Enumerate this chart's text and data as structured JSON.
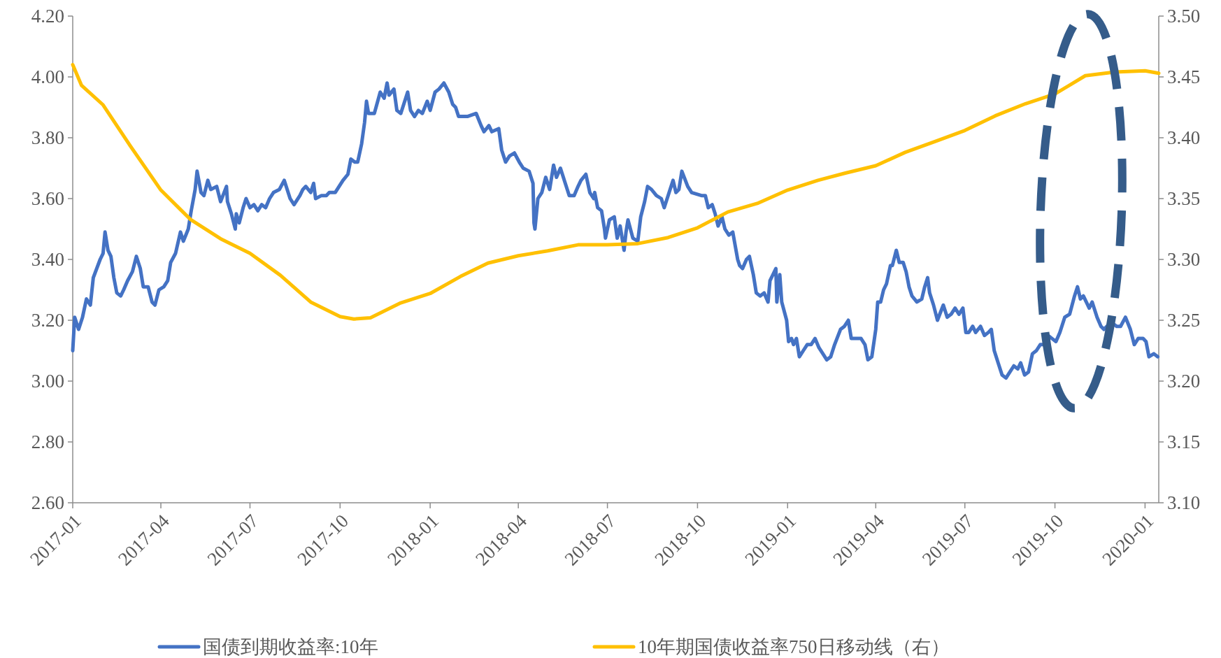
{
  "chart_data": {
    "type": "line",
    "xlim": [
      "2017-01-01",
      "2020-01-15"
    ],
    "xticks": [
      "2017-01",
      "2017-04",
      "2017-07",
      "2017-10",
      "2018-01",
      "2018-04",
      "2018-07",
      "2018-10",
      "2019-01",
      "2019-04",
      "2019-07",
      "2019-10",
      "2020-01"
    ],
    "ylim": [
      2.6,
      4.2
    ],
    "yticks": [
      {
        "value": 2.6,
        "label": "2.60"
      },
      {
        "value": 2.8,
        "label": "2.80"
      },
      {
        "value": 3.0,
        "label": "3.00"
      },
      {
        "value": 3.2,
        "label": "3.20"
      },
      {
        "value": 3.4,
        "label": "3.40"
      },
      {
        "value": 3.6,
        "label": "3.60"
      },
      {
        "value": 3.8,
        "label": "3.80"
      },
      {
        "value": 4.0,
        "label": "4.00"
      },
      {
        "value": 4.2,
        "label": "4.20"
      }
    ],
    "y2lim": [
      3.1,
      3.5
    ],
    "y2ticks": [
      {
        "value": 3.1,
        "label": "3.10"
      },
      {
        "value": 3.15,
        "label": "3.15"
      },
      {
        "value": 3.2,
        "label": "3.20"
      },
      {
        "value": 3.25,
        "label": "3.25"
      },
      {
        "value": 3.3,
        "label": "3.30"
      },
      {
        "value": 3.35,
        "label": "3.35"
      },
      {
        "value": 3.4,
        "label": "3.40"
      },
      {
        "value": 3.45,
        "label": "3.45"
      },
      {
        "value": 3.5,
        "label": "3.50"
      }
    ],
    "legend": "bottom",
    "series": [
      {
        "name": "国债到期收益率:10年",
        "color": "#4472c4",
        "x": [
          "2017-01-01",
          "2017-01-03",
          "2017-01-07",
          "2017-01-11",
          "2017-01-15",
          "2017-01-19",
          "2017-01-22",
          "2017-01-29",
          "2017-02-01",
          "2017-02-03",
          "2017-02-06",
          "2017-02-09",
          "2017-02-12",
          "2017-02-15",
          "2017-02-19",
          "2017-02-22",
          "2017-02-26",
          "2017-03-03",
          "2017-03-07",
          "2017-03-11",
          "2017-03-14",
          "2017-03-19",
          "2017-03-23",
          "2017-03-26",
          "2017-03-30",
          "2017-04-04",
          "2017-04-08",
          "2017-04-11",
          "2017-04-16",
          "2017-04-21",
          "2017-04-24",
          "2017-04-29",
          "2017-05-02",
          "2017-05-06",
          "2017-05-08",
          "2017-05-12",
          "2017-05-15",
          "2017-05-19",
          "2017-05-22",
          "2017-05-28",
          "2017-06-01",
          "2017-06-07",
          "2017-06-08",
          "2017-06-12",
          "2017-06-16",
          "2017-06-17",
          "2017-06-20",
          "2017-06-24",
          "2017-06-27",
          "2017-07-01",
          "2017-07-05",
          "2017-07-09",
          "2017-07-13",
          "2017-07-17",
          "2017-07-21",
          "2017-07-25",
          "2017-07-31",
          "2017-08-05",
          "2017-08-11",
          "2017-08-15",
          "2017-08-21",
          "2017-08-24",
          "2017-08-27",
          "2017-09-01",
          "2017-09-04",
          "2017-09-06",
          "2017-09-12",
          "2017-09-17",
          "2017-09-20",
          "2017-09-26",
          "2017-10-04",
          "2017-10-09",
          "2017-10-12",
          "2017-10-16",
          "2017-10-19",
          "2017-10-23",
          "2017-10-26",
          "2017-10-28",
          "2017-10-30",
          "2017-11-05",
          "2017-11-11",
          "2017-11-15",
          "2017-11-18",
          "2017-11-20",
          "2017-11-25",
          "2017-11-28",
          "2017-12-02",
          "2017-12-07",
          "2017-12-09",
          "2017-12-12",
          "2017-12-16",
          "2017-12-20",
          "2017-12-24",
          "2017-12-29",
          "2018-01-01",
          "2018-01-06",
          "2018-01-10",
          "2018-01-15",
          "2018-01-20",
          "2018-01-24",
          "2018-01-27",
          "2018-01-30",
          "2018-02-08",
          "2018-02-17",
          "2018-02-22",
          "2018-02-25",
          "2018-03-02",
          "2018-03-05",
          "2018-03-12",
          "2018-03-15",
          "2018-03-19",
          "2018-03-23",
          "2018-03-28",
          "2018-04-02",
          "2018-04-06",
          "2018-04-12",
          "2018-04-16",
          "2018-04-17",
          "2018-04-18",
          "2018-04-21",
          "2018-04-25",
          "2018-04-29",
          "2018-05-03",
          "2018-05-07",
          "2018-05-10",
          "2018-05-14",
          "2018-05-18",
          "2018-05-23",
          "2018-05-28",
          "2018-06-01",
          "2018-06-04",
          "2018-06-09",
          "2018-06-13",
          "2018-06-17",
          "2018-06-18",
          "2018-06-21",
          "2018-06-25",
          "2018-06-28",
          "2018-06-29",
          "2018-07-03",
          "2018-07-08",
          "2018-07-11",
          "2018-07-14",
          "2018-07-18",
          "2018-07-20",
          "2018-07-22",
          "2018-07-27",
          "2018-08-01",
          "2018-08-04",
          "2018-08-08",
          "2018-08-11",
          "2018-08-15",
          "2018-08-20",
          "2018-08-25",
          "2018-08-28",
          "2018-09-02",
          "2018-09-06",
          "2018-09-09",
          "2018-09-12",
          "2018-09-15",
          "2018-09-21",
          "2018-09-25",
          "2018-10-05",
          "2018-10-09",
          "2018-10-12",
          "2018-10-16",
          "2018-10-19",
          "2018-10-22",
          "2018-10-26",
          "2018-10-29",
          "2018-11-02",
          "2018-11-06",
          "2018-11-11",
          "2018-11-13",
          "2018-11-16",
          "2018-11-20",
          "2018-11-23",
          "2018-11-27",
          "2018-11-30",
          "2018-12-04",
          "2018-12-08",
          "2018-12-12",
          "2018-12-14",
          "2018-12-17",
          "2018-12-20",
          "2018-12-21",
          "2018-12-24",
          "2018-12-26",
          "2018-12-31",
          "2019-01-02",
          "2019-01-05",
          "2019-01-07",
          "2019-01-10",
          "2019-01-13",
          "2019-01-17",
          "2019-01-21",
          "2019-01-25",
          "2019-01-29",
          "2019-02-02",
          "2019-02-10",
          "2019-02-14",
          "2019-02-18",
          "2019-02-24",
          "2019-02-28",
          "2019-03-04",
          "2019-03-07",
          "2019-03-12",
          "2019-03-17",
          "2019-03-21",
          "2019-03-24",
          "2019-03-28",
          "2019-04-01",
          "2019-04-03",
          "2019-04-06",
          "2019-04-09",
          "2019-04-12",
          "2019-04-16",
          "2019-04-18",
          "2019-04-22",
          "2019-04-25",
          "2019-04-29",
          "2019-05-02",
          "2019-05-05",
          "2019-05-08",
          "2019-05-13",
          "2019-05-18",
          "2019-05-21",
          "2019-05-24",
          "2019-05-26",
          "2019-05-30",
          "2019-06-03",
          "2019-06-09",
          "2019-06-13",
          "2019-06-17",
          "2019-06-21",
          "2019-06-25",
          "2019-06-29",
          "2019-07-02",
          "2019-07-05",
          "2019-07-09",
          "2019-07-12",
          "2019-07-17",
          "2019-07-21",
          "2019-07-25",
          "2019-07-28",
          "2019-07-31",
          "2019-08-04",
          "2019-08-08",
          "2019-08-12",
          "2019-08-16",
          "2019-08-20",
          "2019-08-24",
          "2019-08-27",
          "2019-08-31",
          "2019-09-04",
          "2019-09-08",
          "2019-09-12",
          "2019-09-16",
          "2019-09-20",
          "2019-09-24",
          "2019-09-28",
          "2019-10-02",
          "2019-10-06",
          "2019-10-11",
          "2019-10-16",
          "2019-10-21",
          "2019-10-24",
          "2019-10-27",
          "2019-10-30",
          "2019-11-02",
          "2019-11-05",
          "2019-11-08",
          "2019-11-13",
          "2019-11-17",
          "2019-11-20",
          "2019-11-23",
          "2019-11-26",
          "2019-11-29",
          "2019-12-03",
          "2019-12-07",
          "2019-12-12",
          "2019-12-17",
          "2019-12-21",
          "2019-12-25",
          "2019-12-30",
          "2020-01-02",
          "2020-01-05",
          "2020-01-10",
          "2020-01-14"
        ],
        "values": [
          3.1,
          3.21,
          3.17,
          3.21,
          3.27,
          3.25,
          3.34,
          3.4,
          3.42,
          3.49,
          3.43,
          3.41,
          3.34,
          3.29,
          3.28,
          3.3,
          3.33,
          3.36,
          3.41,
          3.37,
          3.31,
          3.31,
          3.26,
          3.25,
          3.3,
          3.31,
          3.33,
          3.39,
          3.42,
          3.49,
          3.46,
          3.5,
          3.56,
          3.63,
          3.69,
          3.62,
          3.61,
          3.66,
          3.63,
          3.64,
          3.59,
          3.64,
          3.59,
          3.55,
          3.5,
          3.55,
          3.52,
          3.57,
          3.6,
          3.57,
          3.58,
          3.56,
          3.58,
          3.57,
          3.6,
          3.62,
          3.63,
          3.66,
          3.6,
          3.58,
          3.61,
          3.63,
          3.64,
          3.62,
          3.65,
          3.6,
          3.61,
          3.61,
          3.62,
          3.62,
          3.66,
          3.68,
          3.73,
          3.72,
          3.72,
          3.78,
          3.85,
          3.92,
          3.88,
          3.88,
          3.95,
          3.93,
          3.98,
          3.94,
          3.96,
          3.89,
          3.88,
          3.93,
          3.95,
          3.89,
          3.87,
          3.89,
          3.88,
          3.92,
          3.89,
          3.95,
          3.96,
          3.98,
          3.95,
          3.91,
          3.9,
          3.87,
          3.87,
          3.88,
          3.84,
          3.82,
          3.84,
          3.82,
          3.83,
          3.76,
          3.72,
          3.74,
          3.75,
          3.72,
          3.7,
          3.69,
          3.65,
          3.52,
          3.5,
          3.6,
          3.62,
          3.67,
          3.63,
          3.71,
          3.67,
          3.7,
          3.66,
          3.61,
          3.61,
          3.64,
          3.66,
          3.68,
          3.62,
          3.6,
          3.62,
          3.57,
          3.56,
          3.5,
          3.47,
          3.53,
          3.54,
          3.47,
          3.51,
          3.43,
          3.49,
          3.53,
          3.47,
          3.46,
          3.54,
          3.59,
          3.64,
          3.63,
          3.61,
          3.6,
          3.57,
          3.62,
          3.66,
          3.62,
          3.63,
          3.69,
          3.64,
          3.62,
          3.61,
          3.61,
          3.57,
          3.58,
          3.55,
          3.51,
          3.54,
          3.5,
          3.48,
          3.49,
          3.4,
          3.38,
          3.37,
          3.4,
          3.41,
          3.35,
          3.29,
          3.28,
          3.29,
          3.26,
          3.33,
          3.35,
          3.37,
          3.26,
          3.35,
          3.26,
          3.2,
          3.13,
          3.14,
          3.12,
          3.14,
          3.08,
          3.1,
          3.12,
          3.12,
          3.14,
          3.11,
          3.07,
          3.08,
          3.12,
          3.17,
          3.18,
          3.2,
          3.14,
          3.14,
          3.14,
          3.12,
          3.07,
          3.08,
          3.17,
          3.26,
          3.26,
          3.3,
          3.32,
          3.38,
          3.38,
          3.43,
          3.39,
          3.39,
          3.36,
          3.31,
          3.28,
          3.26,
          3.27,
          3.31,
          3.34,
          3.29,
          3.25,
          3.2,
          3.25,
          3.21,
          3.22,
          3.24,
          3.22,
          3.24,
          3.16,
          3.16,
          3.18,
          3.16,
          3.18,
          3.15,
          3.16,
          3.17,
          3.1,
          3.06,
          3.02,
          3.01,
          3.03,
          3.05,
          3.04,
          3.06,
          3.02,
          3.03,
          3.09,
          3.1,
          3.12,
          3.12,
          3.15,
          3.14,
          3.13,
          3.16,
          3.21,
          3.22,
          3.28,
          3.31,
          3.27,
          3.28,
          3.26,
          3.24,
          3.26,
          3.21,
          3.18,
          3.17,
          3.18,
          3.17,
          3.19,
          3.18,
          3.18,
          3.21,
          3.17,
          3.12,
          3.14,
          3.14,
          3.13,
          3.08,
          3.09,
          3.08
        ]
      },
      {
        "name": "10年期国债收益率750日移动线（右）",
        "color": "#ffc000",
        "axis": "y2",
        "x": [
          "2017-01-01",
          "2017-01-10",
          "2017-02-01",
          "2017-03-01",
          "2017-04-01",
          "2017-05-01",
          "2017-06-01",
          "2017-07-01",
          "2017-08-01",
          "2017-09-01",
          "2017-10-01",
          "2017-10-15",
          "2017-11-01",
          "2017-12-01",
          "2018-01-01",
          "2018-02-01",
          "2018-03-01",
          "2018-04-01",
          "2018-05-01",
          "2018-06-01",
          "2018-07-01",
          "2018-08-01",
          "2018-09-01",
          "2018-10-01",
          "2018-11-01",
          "2018-12-01",
          "2019-01-01",
          "2019-02-01",
          "2019-03-01",
          "2019-04-01",
          "2019-05-01",
          "2019-06-01",
          "2019-07-01",
          "2019-08-01",
          "2019-09-01",
          "2019-10-01",
          "2019-11-01",
          "2019-12-01",
          "2020-01-01",
          "2020-01-15"
        ],
        "values": [
          3.46,
          3.443,
          3.427,
          3.393,
          3.357,
          3.333,
          3.317,
          3.305,
          3.287,
          3.265,
          3.253,
          3.251,
          3.252,
          3.264,
          3.272,
          3.286,
          3.297,
          3.303,
          3.307,
          3.312,
          3.312,
          3.313,
          3.318,
          3.326,
          3.339,
          3.346,
          3.357,
          3.365,
          3.371,
          3.377,
          3.388,
          3.397,
          3.406,
          3.418,
          3.428,
          3.436,
          3.451,
          3.454,
          3.455,
          3.453
        ]
      }
    ]
  }
}
